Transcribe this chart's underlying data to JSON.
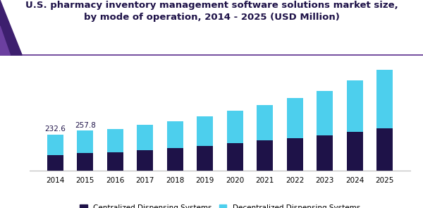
{
  "title_line1": "U.S. pharmacy inventory management software solutions market size,",
  "title_line2": "by mode of operation, 2014 - 2025 (USD Million)",
  "years": [
    2014,
    2015,
    2016,
    2017,
    2018,
    2019,
    2020,
    2021,
    2022,
    2023,
    2024,
    2025
  ],
  "centralized": [
    100,
    112,
    120,
    132,
    145,
    160,
    176,
    196,
    210,
    228,
    252,
    272
  ],
  "decentralized": [
    132.6,
    145.8,
    148,
    162,
    175,
    192,
    210,
    228,
    258,
    285,
    330,
    378
  ],
  "annotations": [
    {
      "year_idx": 0,
      "value": "232.6"
    },
    {
      "year_idx": 1,
      "value": "257.8"
    }
  ],
  "centralized_color": "#1e1248",
  "decentralized_color": "#4dcfed",
  "legend_labels": [
    "Centralized Dispensing Systems",
    "Decentralized Dispensing Systems"
  ],
  "bar_width": 0.55,
  "ylim": [
    0,
    700
  ],
  "title_color": "#1e1248",
  "title_fontsize": 9.5,
  "background_color": "#ffffff",
  "accent_dark": "#3d1f6e",
  "accent_mid": "#6b3fa0",
  "header_line_color": "#5b2d8e"
}
